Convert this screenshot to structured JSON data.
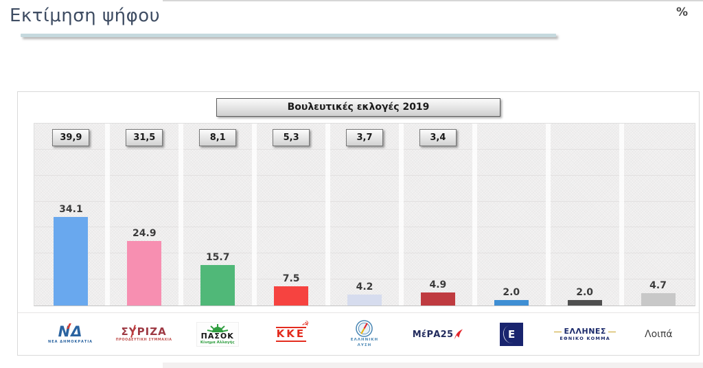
{
  "page": {
    "title": "Εκτίμηση ψήφου",
    "unit_label": "%"
  },
  "chart_data": {
    "type": "bar",
    "title": "Εκτίμηση ψήφου",
    "unit": "%",
    "reference_header": "Βουλευτικές εκλογές 2019",
    "categories": [
      "ΝΔ - ΝΕΑ ΔΗΜΟΚΡΑΤΙΑ",
      "ΣΥΡΙΖΑ - ΠΡΟΟΔΕΥΤΙΚΗ ΣΥΜΜΑΧΙΑ",
      "ΠΑΣΟΚ - Κίνημα Αλλαγής",
      "ΚΚΕ",
      "ΕΛΛΗΝΙΚΗ ΛΥΣΗ",
      "ΜέΡΑ25",
      "Ε",
      "ΕΛΛΗΝΕΣ ΕΘΝΙΚΟ ΚΟΜΜΑ",
      "Λοιπά"
    ],
    "values": [
      34.1,
      24.9,
      15.7,
      7.5,
      4.2,
      4.9,
      2.0,
      2.0,
      4.7
    ],
    "value_labels": [
      "34.1",
      "24.9",
      "15.7",
      "7.5",
      "4.2",
      "4.9",
      "2.0",
      "2.0",
      "4.7"
    ],
    "reference_values": [
      39.9,
      31.5,
      8.1,
      5.3,
      3.7,
      3.4
    ],
    "reference_labels": [
      "39,9",
      "31,5",
      "8,1",
      "5,3",
      "3,7",
      "3,4"
    ],
    "bar_colors": [
      "#69a8ee",
      "#f78fb1",
      "#50b878",
      "#f64340",
      "#d6dcee",
      "#bf3b40",
      "#3f8fd4",
      "#4f4f4f",
      "#c8c8c8"
    ],
    "ylim": [
      0,
      70
    ],
    "gridline_step": 10,
    "grid": true,
    "legend_position": "none",
    "xlabel": "",
    "ylabel": ""
  },
  "parties": [
    {
      "id": "nea-dimokratia",
      "logo_main": "ΝΔ",
      "logo_caption": "ΝΕΑ ΔΗΜΟΚΡΑΤΙΑ"
    },
    {
      "id": "syriza",
      "logo_main": "ΣΥΡΙΖΑ",
      "logo_caption": "ΠΡΟΟΔΕΥΤΙΚΗ ΣΥΜΜΑΧΙΑ"
    },
    {
      "id": "pasok",
      "logo_main": "ΠΑΣΟΚ",
      "logo_caption": "Κίνημα Αλλαγής"
    },
    {
      "id": "kke",
      "logo_main": "ΚΚΕ",
      "logo_symbol": "☭"
    },
    {
      "id": "elliniki-lysi",
      "caption_line1": "ΕΛΛΗΝΙΚΗ",
      "caption_line2": "ΛΥΣΗ"
    },
    {
      "id": "mera25",
      "logo_main": "ΜέΡΑ25"
    },
    {
      "id": "e-party",
      "logo_main": "Ε"
    },
    {
      "id": "ellines",
      "logo_main": "ΕΛΛΗΝΕΣ",
      "logo_caption": "ΕΘΝΙΚΟ ΚΟΜΜΑ"
    },
    {
      "id": "loipa",
      "logo_main": "Λοιπά"
    }
  ]
}
